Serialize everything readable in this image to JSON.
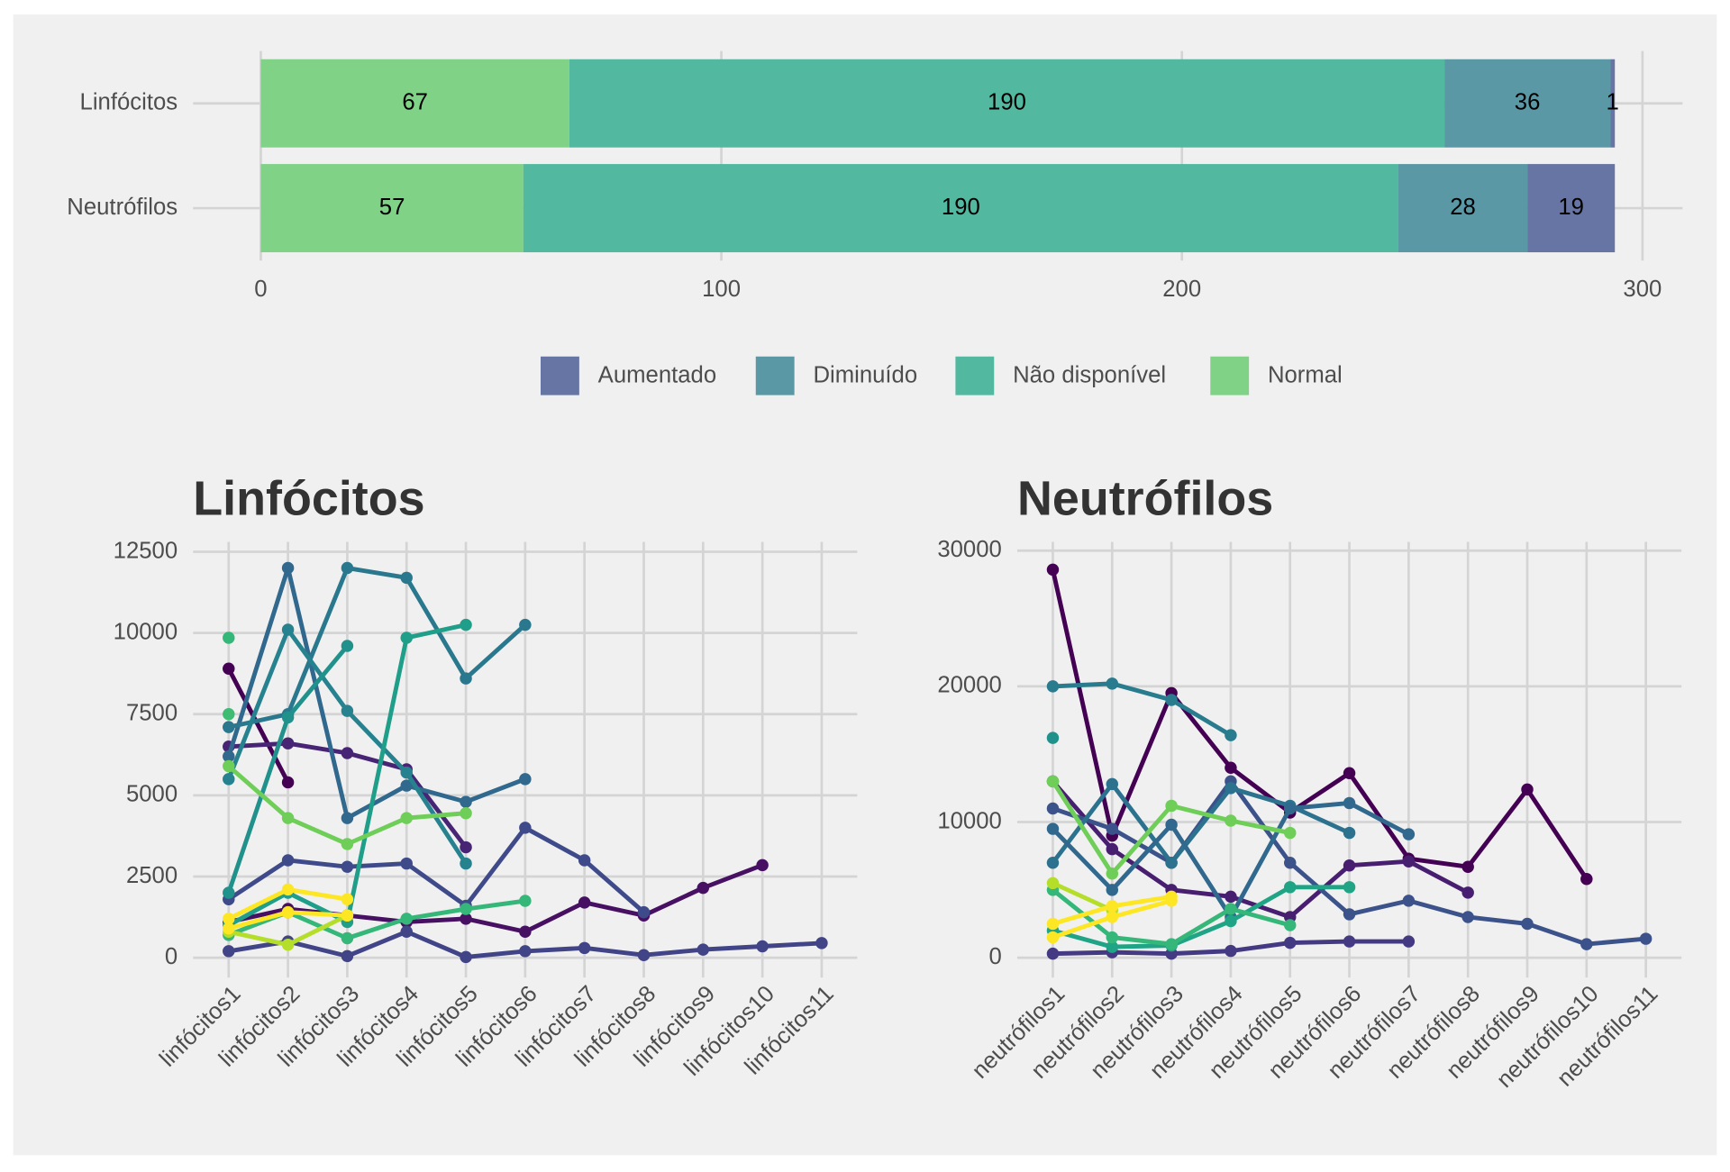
{
  "chart_data": [
    {
      "type": "bar",
      "orientation": "horizontal",
      "stacked": true,
      "categories": [
        "Linfócitos",
        "Neutrófilos"
      ],
      "series": [
        {
          "name": "Normal",
          "color": "#80d287",
          "values": [
            67,
            57
          ]
        },
        {
          "name": "Não disponível",
          "color": "#52b9a0",
          "values": [
            190,
            190
          ]
        },
        {
          "name": "Diminuído",
          "color": "#5b98a6",
          "values": [
            36,
            28
          ]
        },
        {
          "name": "Aumentado",
          "color": "#6675a3",
          "values": [
            1,
            19
          ]
        }
      ],
      "legend_order": [
        3,
        2,
        1,
        0
      ],
      "xlim": [
        -14.7,
        308.7
      ],
      "xticks": [
        0,
        100,
        200,
        300
      ],
      "grid": true,
      "legend": "bottom"
    },
    {
      "type": "line",
      "title": "Linfócitos",
      "categories": [
        "linfócitos1",
        "linfócitos2",
        "linfócitos3",
        "linfócitos4",
        "linfócitos5",
        "linfócitos6",
        "linfócitos7",
        "linfócitos8",
        "linfócitos9",
        "linfócitos10",
        "linfócitos11"
      ],
      "ylim": [
        -611,
        12806
      ],
      "yticks": [
        0,
        2500,
        5000,
        7500,
        10000,
        12500
      ],
      "grid": true,
      "series": [
        {
          "color": "#440154",
          "values": [
            8900,
            5400,
            null,
            null,
            null,
            null,
            null,
            null,
            null,
            null,
            null
          ]
        },
        {
          "color": "#471063",
          "values": [
            1100,
            1500,
            1300,
            1100,
            1200,
            800,
            1700,
            1300,
            2150,
            2850,
            null
          ]
        },
        {
          "color": "#482475",
          "values": [
            6500,
            6600,
            6300,
            5800,
            3400,
            null,
            null,
            null,
            null,
            null,
            null
          ]
        },
        {
          "color": "#414487",
          "values": [
            200,
            500,
            50,
            800,
            20,
            200,
            300,
            80,
            250,
            350,
            450
          ]
        },
        {
          "color": "#3e4a89",
          "values": [
            1800,
            3000,
            2800,
            2900,
            1600,
            4000,
            3000,
            1400,
            null,
            null,
            null
          ]
        },
        {
          "color": "#31688e",
          "values": [
            6200,
            12000,
            4300,
            5300,
            4800,
            5500,
            null,
            null,
            null,
            null,
            null
          ]
        },
        {
          "color": "#2a788e",
          "values": [
            7100,
            7500,
            12000,
            11700,
            8600,
            10250,
            null,
            null,
            null,
            null,
            null
          ]
        },
        {
          "color": "#26828e",
          "values": [
            5500,
            10100,
            7600,
            5700,
            2900,
            null,
            null,
            null,
            null,
            null,
            null
          ]
        },
        {
          "color": "#21918c",
          "values": [
            2000,
            7400,
            9600,
            null,
            null,
            null,
            null,
            null,
            null,
            null,
            null
          ]
        },
        {
          "color": "#1f9e89",
          "values": [
            1000,
            2000,
            1100,
            9850,
            10250,
            null,
            null,
            null,
            null,
            null,
            null
          ]
        },
        {
          "color": "#35b779",
          "values": [
            700,
            1400,
            600,
            1200,
            1500,
            1750,
            null,
            null,
            null,
            null,
            null
          ]
        },
        {
          "color": "#6ece58",
          "values": [
            5900,
            4300,
            3500,
            4300,
            4450,
            null,
            null,
            null,
            null,
            null,
            null
          ]
        },
        {
          "color": "#b5de2b",
          "values": [
            800,
            400,
            1300,
            null,
            null,
            null,
            null,
            null,
            null,
            null,
            null
          ]
        },
        {
          "color": "#fde725",
          "values": [
            1200,
            2100,
            1800,
            null,
            null,
            null,
            null,
            null,
            null,
            null,
            null
          ]
        },
        {
          "color": "#fde725",
          "values": [
            900,
            1400,
            1300,
            null,
            null,
            null,
            null,
            null,
            null,
            null,
            null
          ]
        },
        {
          "color": "#35b779",
          "values": [
            9850,
            null,
            null,
            null,
            null,
            null,
            null,
            null,
            null,
            null,
            null
          ]
        },
        {
          "color": "#3ebc73",
          "values": [
            7500,
            null,
            null,
            null,
            null,
            null,
            null,
            null,
            null,
            null,
            null
          ]
        }
      ]
    },
    {
      "type": "line",
      "title": "Neutrófilos",
      "categories": [
        "neutrófilos1",
        "neutrófilos2",
        "neutrófilos3",
        "neutrófilos4",
        "neutrófilos5",
        "neutrófilos6",
        "neutrófilos7",
        "neutrófilos8",
        "neutrófilos9",
        "neutrófilos10",
        "neutrófilos11"
      ],
      "ylim": [
        -1460,
        30650
      ],
      "yticks": [
        0,
        10000,
        20000,
        30000
      ],
      "grid": true,
      "series": [
        {
          "color": "#440154",
          "values": [
            28600,
            9000,
            19500,
            14000,
            10700,
            13600,
            7300,
            6700,
            12400,
            5800,
            null
          ]
        },
        {
          "color": "#481f70",
          "values": [
            13000,
            8000,
            5000,
            4500,
            3000,
            6800,
            7100,
            4800,
            null,
            null,
            null
          ]
        },
        {
          "color": "#443a83",
          "values": [
            300,
            400,
            300,
            500,
            1100,
            1200,
            1200,
            null,
            null,
            null,
            null
          ]
        },
        {
          "color": "#3b528b",
          "values": [
            11000,
            9500,
            7000,
            13000,
            7000,
            3200,
            4200,
            3000,
            2500,
            1000,
            1400
          ]
        },
        {
          "color": "#2c728e",
          "values": [
            7000,
            12800,
            7000,
            12500,
            11200,
            9200,
            null,
            null,
            null,
            null,
            null
          ]
        },
        {
          "color": "#31688e",
          "values": [
            9500,
            5000,
            9800,
            3000,
            11000,
            11400,
            9100,
            null,
            null,
            null,
            null
          ]
        },
        {
          "color": "#287c8e",
          "values": [
            20000,
            20200,
            19000,
            16400,
            null,
            null,
            null,
            null,
            null,
            null,
            null
          ]
        },
        {
          "color": "#20a486",
          "values": [
            2000,
            800,
            900,
            2700,
            5200,
            5200,
            null,
            null,
            null,
            null,
            null
          ]
        },
        {
          "color": "#35b779",
          "values": [
            5000,
            1500,
            1000,
            3600,
            2400,
            null,
            null,
            null,
            null,
            null,
            null
          ]
        },
        {
          "color": "#6ece58",
          "values": [
            13000,
            6200,
            11200,
            10100,
            9200,
            null,
            null,
            null,
            null,
            null,
            null
          ]
        },
        {
          "color": "#b5de2b",
          "values": [
            5500,
            3500,
            null,
            null,
            null,
            null,
            null,
            null,
            null,
            null,
            null
          ]
        },
        {
          "color": "#fde725",
          "values": [
            1500,
            3000,
            4200,
            null,
            null,
            null,
            null,
            null,
            null,
            null,
            null
          ]
        },
        {
          "color": "#fde725",
          "values": [
            2500,
            3800,
            4500,
            null,
            null,
            null,
            null,
            null,
            null,
            null,
            null
          ]
        },
        {
          "color": "#21918c",
          "values": [
            16200,
            null,
            null,
            null,
            null,
            null,
            null,
            null,
            null,
            null,
            null
          ]
        }
      ]
    }
  ]
}
